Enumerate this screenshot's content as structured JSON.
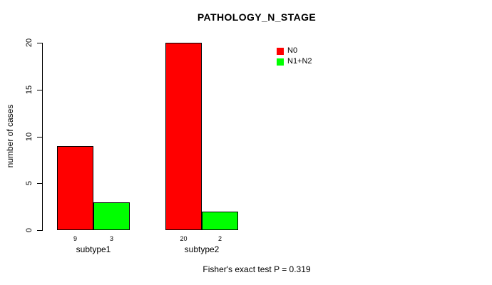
{
  "figure": {
    "background": "#ffffff",
    "text_color": "#000000"
  },
  "chart_data": {
    "type": "bar",
    "title": "PATHOLOGY_N_STAGE",
    "xlabel": "",
    "ylabel": "number of cases",
    "categories": [
      "subtype1",
      "subtype2"
    ],
    "series": [
      {
        "name": "N0",
        "color": "#FF0000",
        "values": [
          9,
          20
        ]
      },
      {
        "name": "N1+N2",
        "color": "#00FF00",
        "values": [
          3,
          2
        ]
      }
    ],
    "value_labels": [
      [
        9,
        3
      ],
      [
        20,
        2
      ]
    ],
    "yticks": [
      0,
      5,
      10,
      15,
      20
    ],
    "ylim": [
      0,
      20
    ],
    "grid": false,
    "legend_position": "top-right",
    "annotation": "Fisher's exact test P = 0.319"
  }
}
